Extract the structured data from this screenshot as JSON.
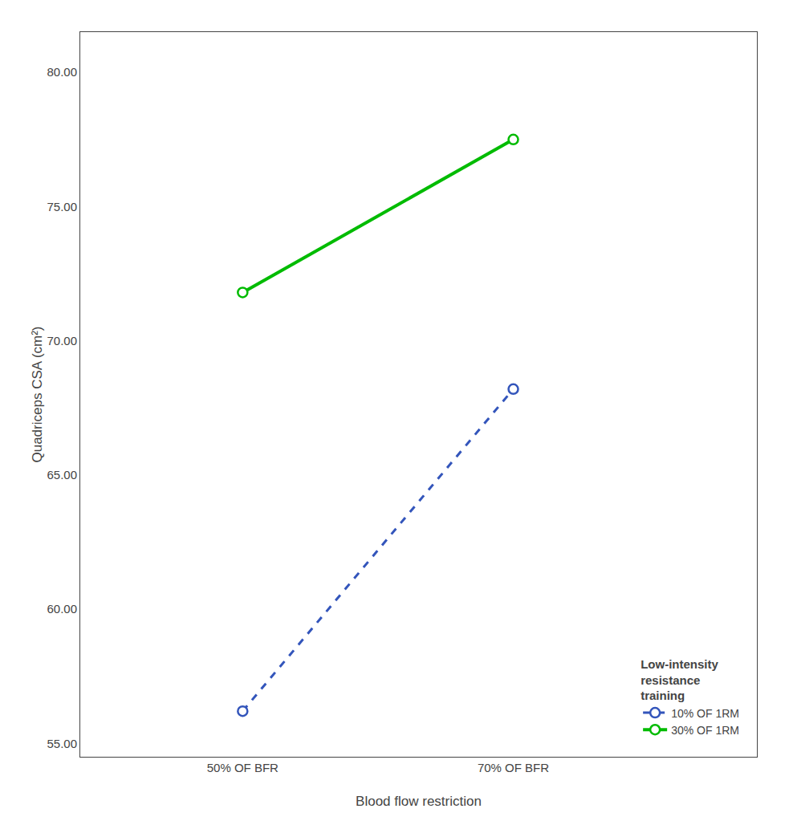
{
  "chart_data": {
    "type": "line",
    "x_label": "Blood flow restriction",
    "y_label": "Quadriceps CSA (cm²)",
    "categories": [
      "50% OF BFR",
      "70% OF BFR"
    ],
    "series": [
      {
        "name": "30% OF 1RM",
        "color": "#00bb00",
        "values": [
          71.8,
          77.5
        ],
        "line_style": "solid",
        "marker": "circle"
      },
      {
        "name": "10% OF 1RM",
        "color": "#3355bb",
        "values": [
          56.2,
          68.2
        ],
        "line_style": "dashed",
        "marker": "circle"
      }
    ],
    "legend_title": "Low-intensity\nresistance\ntraining",
    "legend": "lower right",
    "ylim": [
      54.5,
      81.5
    ],
    "yticks": [
      {
        "value": 55.0,
        "label": "55.00"
      },
      {
        "value": 60.0,
        "label": "60.00"
      },
      {
        "value": 65.0,
        "label": "65.00"
      },
      {
        "value": 70.0,
        "label": "70.00"
      },
      {
        "value": 75.0,
        "label": "75.00"
      },
      {
        "value": 80.0,
        "label": "80.00"
      }
    ],
    "grid": false
  }
}
